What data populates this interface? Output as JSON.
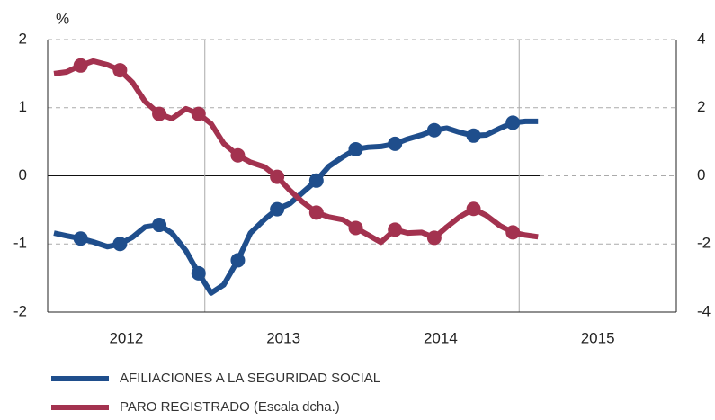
{
  "chart_data": {
    "type": "line",
    "y_unit": "%",
    "xlim": [
      2012,
      2016
    ],
    "xticks": [
      {
        "value": 2012.5,
        "label": "2012"
      },
      {
        "value": 2013.5,
        "label": "2013"
      },
      {
        "value": 2014.5,
        "label": "2014"
      },
      {
        "value": 2015.5,
        "label": "2015"
      }
    ],
    "ylim": [
      -2,
      2
    ],
    "yticks": [
      -2,
      -1,
      0,
      1,
      2
    ],
    "y2lim": [
      -4,
      4
    ],
    "y2ticks": [
      -4,
      -2,
      0,
      2,
      4
    ],
    "grid": true,
    "x": [
      2012.04,
      2012.12,
      2012.21,
      2012.29,
      2012.38,
      2012.46,
      2012.54,
      2012.62,
      2012.71,
      2012.79,
      2012.88,
      2012.96,
      2013.04,
      2013.12,
      2013.21,
      2013.29,
      2013.38,
      2013.46,
      2013.54,
      2013.62,
      2013.71,
      2013.79,
      2013.88,
      2013.96,
      2014.04,
      2014.12,
      2014.21,
      2014.29,
      2014.38,
      2014.46,
      2014.54,
      2014.62,
      2014.71,
      2014.79,
      2014.88,
      2014.96,
      2015.04,
      2015.12
    ],
    "series": [
      {
        "name": "AFILIACIONES A LA SEGURIDAD SOCIAL",
        "color": "#1f4e8c",
        "axis": "y",
        "values": [
          -0.84,
          -0.88,
          -0.92,
          -0.97,
          -1.04,
          -1.0,
          -0.9,
          -0.75,
          -0.72,
          -0.84,
          -1.1,
          -1.43,
          -1.72,
          -1.6,
          -1.24,
          -0.84,
          -0.64,
          -0.49,
          -0.41,
          -0.25,
          -0.07,
          0.14,
          0.28,
          0.39,
          0.42,
          0.43,
          0.47,
          0.54,
          0.6,
          0.67,
          0.7,
          0.64,
          0.59,
          0.6,
          0.7,
          0.78,
          0.8,
          0.8
        ]
      },
      {
        "name": "PARO REGISTRADO (Escala dcha.)",
        "color": "#a3324f",
        "axis": "y2",
        "values": [
          3.0,
          3.05,
          3.24,
          3.37,
          3.26,
          3.1,
          2.74,
          2.18,
          1.82,
          1.68,
          1.97,
          1.82,
          1.53,
          0.95,
          0.6,
          0.4,
          0.26,
          -0.03,
          -0.42,
          -0.76,
          -1.08,
          -1.21,
          -1.29,
          -1.53,
          -1.74,
          -1.95,
          -1.58,
          -1.68,
          -1.66,
          -1.82,
          -1.5,
          -1.21,
          -0.97,
          -1.16,
          -1.47,
          -1.66,
          -1.74,
          -1.79
        ]
      }
    ]
  }
}
